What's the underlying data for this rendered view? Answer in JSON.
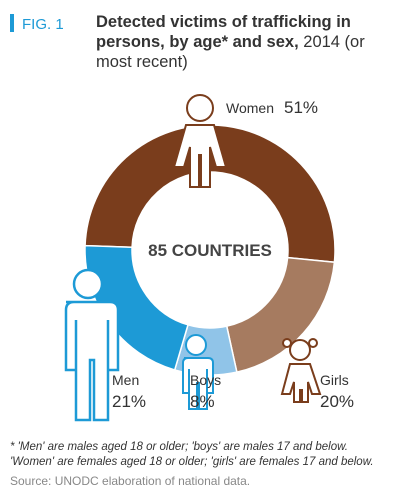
{
  "chart_data": {
    "type": "donut",
    "figure_label": "FIG. 1",
    "title": "Detected victims of trafficking in persons, by age* and sex,",
    "subtitle": "2014 (or most recent)",
    "center_label": "85 COUNTRIES",
    "categories": [
      "Women",
      "Girls",
      "Boys",
      "Men"
    ],
    "values": [
      51,
      20,
      8,
      21
    ],
    "value_labels": [
      "51%",
      "20%",
      "8%",
      "21%"
    ],
    "colors": [
      "#7a3d1c",
      "#a67b60",
      "#90c4e8",
      "#1d9ad6"
    ],
    "footnotes": [
      "* 'Men' are males aged 18 or older; 'boys' are males 17 and below.",
      "'Women' are females aged 18 or older; 'girls' are females 17 and below."
    ],
    "source": "Source: UNODC elaboration of national data."
  }
}
